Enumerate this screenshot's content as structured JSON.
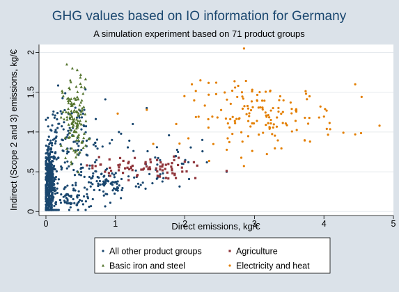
{
  "chart_data": {
    "type": "scatter",
    "title": "GHG values based on IO information for Germany",
    "subtitle": "A simulation experiment based on 71 product groups",
    "xlabel": "Direct emissions, kg/€",
    "ylabel": "Indirect (Scope 2 and 3) emissions, kg/€",
    "xlim": [
      -0.1,
      5.0
    ],
    "ylim": [
      -0.05,
      2.1
    ],
    "x_ticks": [
      "0",
      "1",
      "2",
      "3",
      "4",
      "5"
    ],
    "y_ticks": [
      "0",
      ".5",
      "1",
      "1.5",
      "2"
    ],
    "grid": true,
    "legend_position": "bottom",
    "series": [
      {
        "name": "All other product groups",
        "color": "#1a476f",
        "marker": "circle",
        "clusters": [
          {
            "x": 0.05,
            "y": 0.35,
            "sx": 0.04,
            "sy": 0.22,
            "n": 420
          },
          {
            "x": 0.15,
            "y": 0.85,
            "sx": 0.08,
            "sy": 0.3,
            "n": 60
          },
          {
            "x": 0.45,
            "y": 0.7,
            "sx": 0.2,
            "sy": 0.35,
            "n": 120
          },
          {
            "x": 0.9,
            "y": 0.35,
            "sx": 0.25,
            "sy": 0.1,
            "n": 80
          },
          {
            "x": 1.6,
            "y": 0.6,
            "sx": 0.3,
            "sy": 0.2,
            "n": 40
          },
          {
            "x": 0.3,
            "y": 0.15,
            "sx": 0.15,
            "sy": 0.05,
            "n": 40
          }
        ],
        "points": [
          [
            1.45,
            1.3
          ],
          [
            1.9,
            0.75
          ],
          [
            2.05,
            0.62
          ],
          [
            2.25,
            0.9
          ],
          [
            2.6,
            0.5
          ],
          [
            1.05,
            1.0
          ],
          [
            1.25,
            1.1
          ],
          [
            0.95,
            0.9
          ]
        ]
      },
      {
        "name": "Agriculture",
        "color": "#90353b",
        "marker": "square",
        "clusters": [
          {
            "x": 1.35,
            "y": 0.55,
            "sx": 0.35,
            "sy": 0.07,
            "n": 80
          }
        ],
        "points": [
          [
            2.15,
            0.42
          ],
          [
            2.6,
            0.51
          ],
          [
            0.85,
            0.5
          ]
        ]
      },
      {
        "name": "Basic iron and steel",
        "color": "#55752f",
        "marker": "triangle",
        "clusters": [
          {
            "x": 0.42,
            "y": 1.15,
            "sx": 0.09,
            "sy": 0.25,
            "n": 130
          }
        ],
        "points": [
          [
            0.3,
            1.85
          ],
          [
            0.38,
            1.8
          ],
          [
            0.45,
            1.78
          ],
          [
            0.35,
            1.65
          ],
          [
            0.5,
            1.72
          ]
        ]
      },
      {
        "name": "Electricity and heat",
        "color": "#e37e00",
        "marker": "circle",
        "clusters": [
          {
            "x": 3.1,
            "y": 1.2,
            "sx": 0.55,
            "sy": 0.2,
            "n": 150
          }
        ],
        "points": [
          [
            2.85,
            2.05
          ],
          [
            4.8,
            1.08
          ],
          [
            4.45,
            1.6
          ],
          [
            2.1,
            1.6
          ],
          [
            2.05,
            0.92
          ],
          [
            3.8,
            0.88
          ],
          [
            4.45,
            0.97
          ],
          [
            2.45,
            1.62
          ],
          [
            3.95,
            1.32
          ]
        ]
      }
    ]
  }
}
